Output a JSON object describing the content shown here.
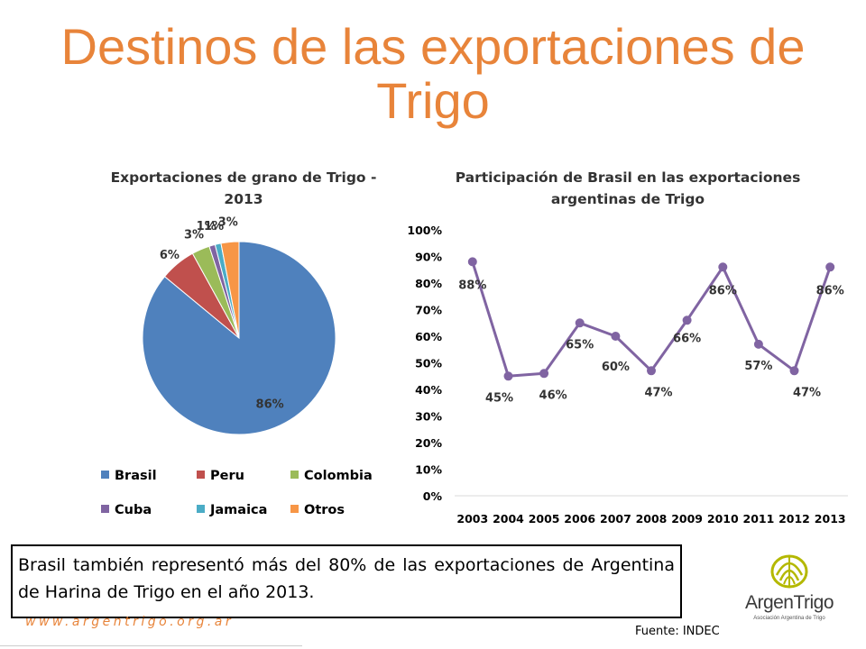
{
  "slide": {
    "title": "Destinos de las exportaciones de Trigo",
    "note": "Brasil también representó más del 80% de las exportaciones de Argentina de Harina de Trigo en el año 2013.",
    "website": "www.argentrigo.org.ar",
    "source": "Fuente: INDEC",
    "logo": {
      "name": "ArgenTrigo",
      "tagline": "Asociación Argentina de Trigo",
      "accent": "#B4B800"
    },
    "title_color": "#E8843A"
  },
  "chart_data": [
    {
      "type": "pie",
      "title": "Exportaciones de grano de Trigo - 2013",
      "title_lines": [
        "Exportaciones de grano de Trigo -",
        "2013"
      ],
      "categories": [
        "Brasil",
        "Peru",
        "Colombia",
        "Cuba",
        "Jamaica",
        "Otros"
      ],
      "values": [
        86,
        6,
        3,
        1,
        1,
        3
      ],
      "data_labels": [
        "86%",
        "6%",
        "3%",
        "1%",
        "1%",
        "3%"
      ],
      "colors": [
        "#4F81BD",
        "#C0504D",
        "#9BBB59",
        "#8064A2",
        "#4BACC6",
        "#F79646"
      ],
      "legend": "bottom"
    },
    {
      "type": "line",
      "title": "Participación de Brasil en las exportaciones argentinas de Trigo",
      "title_lines": [
        "Participación de Brasil en las exportaciones",
        "argentinas de Trigo"
      ],
      "x": [
        "2003",
        "2004",
        "2005",
        "2006",
        "2007",
        "2008",
        "2009",
        "2010",
        "2011",
        "2012",
        "2013"
      ],
      "series": [
        {
          "values": [
            0.88,
            0.45,
            0.46,
            0.65,
            0.6,
            0.47,
            0.66,
            0.86,
            0.57,
            0.47,
            0.86
          ],
          "color": "#8064A2"
        }
      ],
      "data_labels": [
        "88%",
        "45%",
        "46%",
        "65%",
        "60%",
        "47%",
        "66%",
        "86%",
        "57%",
        "47%",
        "86%"
      ],
      "y_ticks": [
        "0%",
        "10%",
        "20%",
        "30%",
        "40%",
        "50%",
        "60%",
        "70%",
        "80%",
        "90%",
        "100%"
      ],
      "ylim": [
        0,
        1
      ],
      "grid": false,
      "legend": "none"
    }
  ]
}
